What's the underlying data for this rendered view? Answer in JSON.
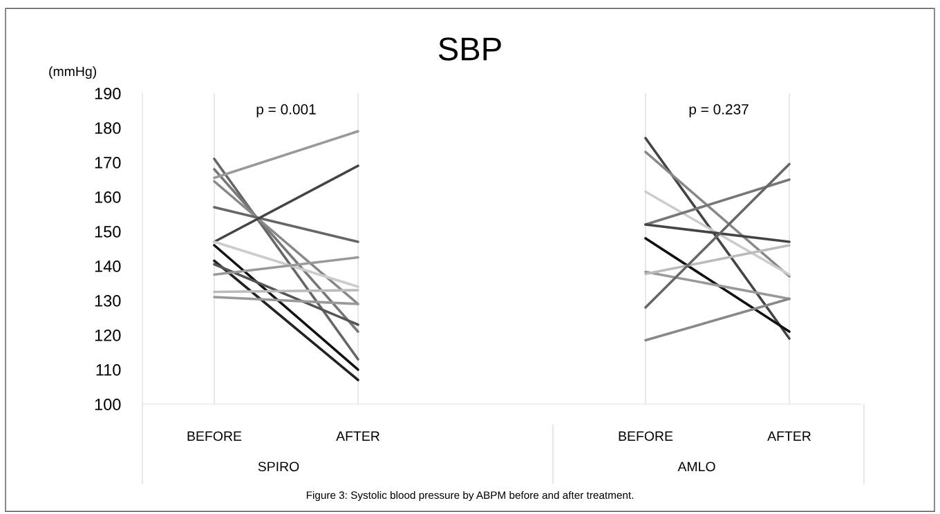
{
  "chart_data": {
    "type": "line",
    "title": "SBP",
    "ylabel": "(mmHg)",
    "categories": [
      "BEFORE",
      "AFTER",
      null,
      "BEFORE",
      "AFTER"
    ],
    "ylim": [
      100,
      190
    ],
    "yticks": [
      100,
      110,
      120,
      130,
      140,
      150,
      160,
      170,
      180,
      190
    ],
    "grid": "x",
    "marker": "none",
    "line_style": "solid",
    "legend": false,
    "annotations": [
      "p = 0.001",
      "p = 0.237",
      "SPIRO",
      "AMLO",
      "Figure 3: Systolic blood pressure by ABPM before and after treatment."
    ],
    "series": [
      {
        "color": "#666666",
        "values": [
          171,
          113,
          null,
          null,
          null
        ]
      },
      {
        "color": "#777777",
        "values": [
          168,
          121,
          null,
          null,
          null
        ]
      },
      {
        "color": "#999999",
        "values": [
          165.5,
          179,
          null,
          null,
          null
        ]
      },
      {
        "color": "#888888",
        "values": [
          164.5,
          129,
          null,
          null,
          null
        ]
      },
      {
        "color": "#666666",
        "values": [
          157,
          147,
          null,
          null,
          null
        ]
      },
      {
        "color": "#444444",
        "values": [
          147,
          169,
          null,
          null,
          null
        ]
      },
      {
        "color": "#cccccc",
        "values": [
          147,
          134,
          null,
          null,
          null
        ]
      },
      {
        "color": "#111111",
        "values": [
          146,
          110,
          null,
          null,
          null
        ]
      },
      {
        "color": "#222222",
        "values": [
          141.5,
          107,
          null,
          null,
          null
        ]
      },
      {
        "color": "#555555",
        "values": [
          140.5,
          123,
          null,
          null,
          null
        ]
      },
      {
        "color": "#999999",
        "values": [
          137.5,
          142.5,
          null,
          null,
          null
        ]
      },
      {
        "color": "#bbbbbb",
        "values": [
          132.5,
          133,
          null,
          null,
          null
        ]
      },
      {
        "color": "#999999",
        "values": [
          131,
          129,
          null,
          null,
          null
        ]
      },
      {
        "color": "#444444",
        "values": [
          null,
          null,
          null,
          177,
          119
        ]
      },
      {
        "color": "#888888",
        "values": [
          null,
          null,
          null,
          173,
          137
        ]
      },
      {
        "color": "#cccccc",
        "values": [
          null,
          null,
          null,
          161.5,
          137.5
        ]
      },
      {
        "color": "#777777",
        "values": [
          null,
          null,
          null,
          152,
          165
        ]
      },
      {
        "color": "#444444",
        "values": [
          null,
          null,
          null,
          152,
          147
        ]
      },
      {
        "color": "#111111",
        "values": [
          null,
          null,
          null,
          148,
          121
        ]
      },
      {
        "color": "#999999",
        "values": [
          null,
          null,
          null,
          138.3,
          130.5
        ]
      },
      {
        "color": "#bbbbbb",
        "values": [
          null,
          null,
          null,
          137.7,
          146
        ]
      },
      {
        "color": "#666666",
        "values": [
          null,
          null,
          null,
          128,
          169.5
        ]
      },
      {
        "color": "#888888",
        "values": [
          null,
          null,
          null,
          118.5,
          130.5
        ]
      }
    ]
  }
}
